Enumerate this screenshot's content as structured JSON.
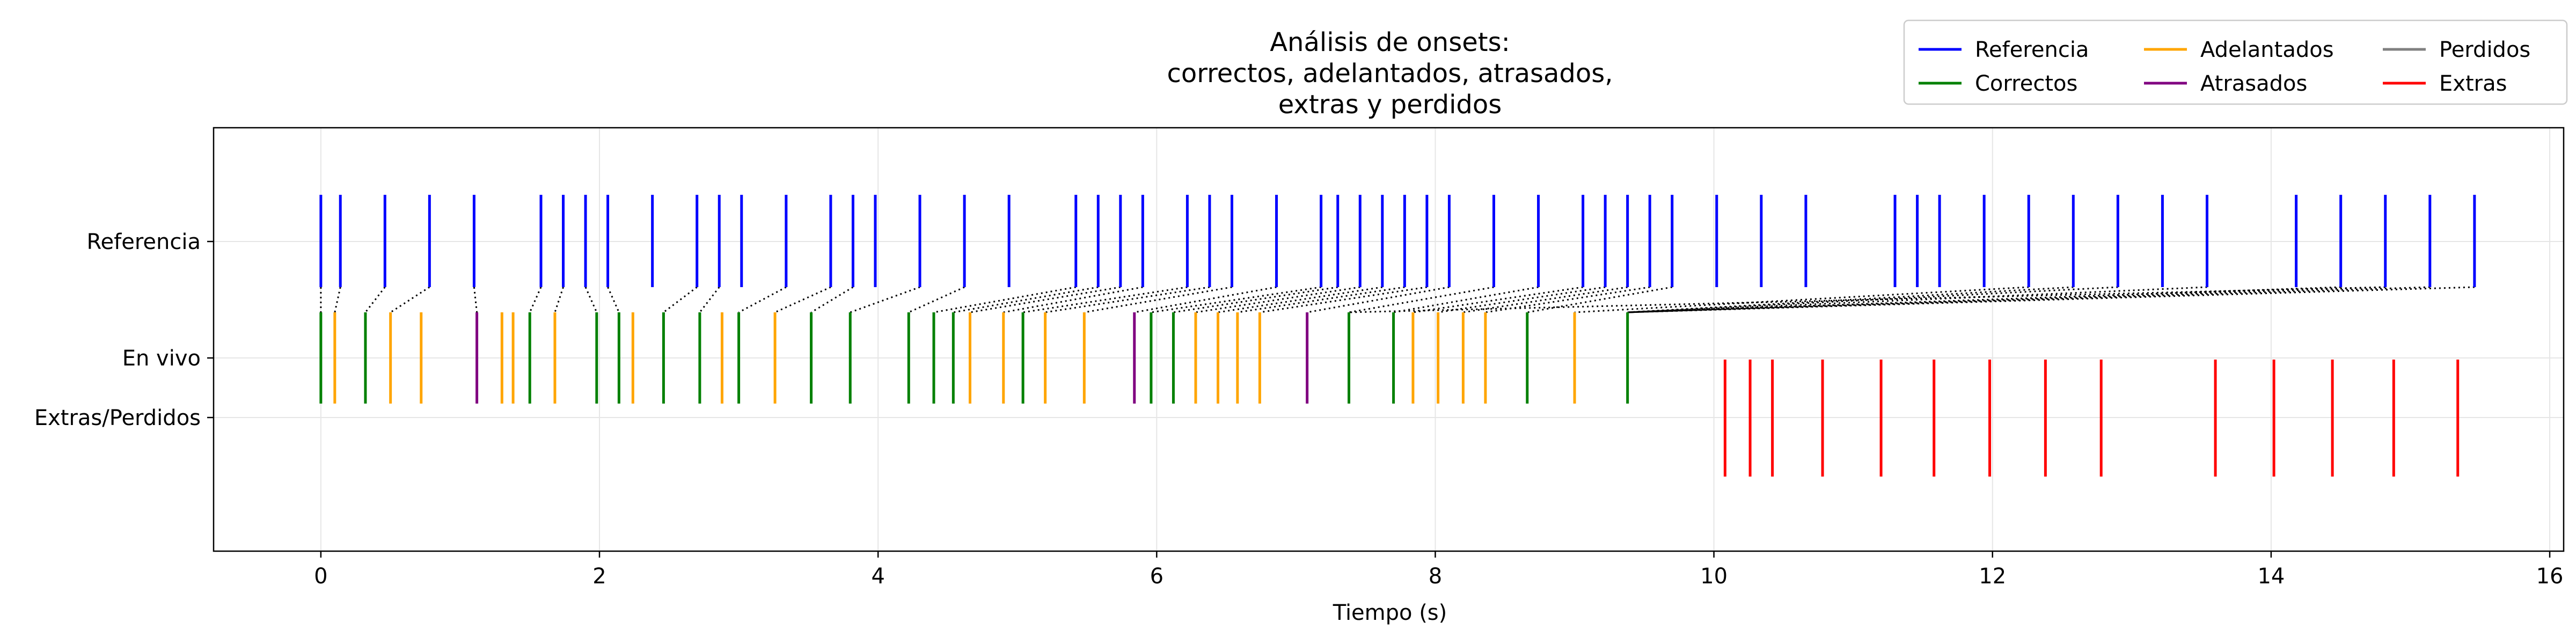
{
  "chart_data": {
    "type": "eventplot",
    "title_lines": [
      "Análisis de onsets:",
      "correctos, adelantados, atrasados,",
      "extras y perdidos"
    ],
    "xlabel": "Tiempo (s)",
    "ylabel": "",
    "xlim": [
      -0.77,
      16.1
    ],
    "xticks": [
      0,
      2,
      4,
      6,
      8,
      10,
      12,
      14,
      16
    ],
    "rows": [
      "Referencia",
      "En vivo",
      "Extras/Perdidos"
    ],
    "grid": true,
    "legend": {
      "placement": "top-right",
      "columns": 3,
      "entries": [
        {
          "label": "Referencia",
          "color": "#0000ff"
        },
        {
          "label": "Correctos",
          "color": "#008000"
        },
        {
          "label": "Adelantados",
          "color": "#ffa500"
        },
        {
          "label": "Atrasados",
          "color": "#800080"
        },
        {
          "label": "Perdidos",
          "color": "#808080"
        },
        {
          "label": "Extras",
          "color": "#ff0000"
        }
      ]
    },
    "series": [
      {
        "name": "Referencia",
        "row": "Referencia",
        "color": "#0000ff",
        "x": [
          0.0,
          0.14,
          0.46,
          0.78,
          1.1,
          1.58,
          1.74,
          1.9,
          2.06,
          2.38,
          2.7,
          2.86,
          3.02,
          3.34,
          3.66,
          3.82,
          3.98,
          4.3,
          4.62,
          4.94,
          5.42,
          5.58,
          5.74,
          5.9,
          6.22,
          6.38,
          6.54,
          6.86,
          7.18,
          7.3,
          7.46,
          7.62,
          7.78,
          7.94,
          8.1,
          8.42,
          8.74,
          9.06,
          9.22,
          9.38,
          9.54,
          9.7,
          10.02,
          10.34,
          10.66,
          11.3,
          11.46,
          11.62,
          11.94,
          12.26,
          12.58,
          12.9,
          13.22,
          13.54,
          14.18,
          14.5,
          14.82,
          15.14,
          15.46
        ]
      },
      {
        "name": "Correctos",
        "row": "En vivo",
        "color": "#008000",
        "x": [
          0.0,
          0.32,
          1.5,
          1.98,
          2.14,
          2.46,
          2.72,
          3.0,
          3.52,
          3.8,
          4.22,
          4.4,
          4.54,
          5.04,
          5.96,
          6.12,
          7.38,
          7.7,
          8.66,
          9.38
        ]
      },
      {
        "name": "Adelantados",
        "row": "En vivo",
        "color": "#ffa500",
        "x": [
          0.1,
          0.5,
          0.72,
          1.3,
          1.38,
          1.68,
          2.24,
          2.88,
          3.26,
          4.66,
          4.9,
          5.2,
          5.48,
          6.28,
          6.44,
          6.58,
          6.74,
          7.84,
          8.02,
          8.2,
          8.36,
          9.0
        ]
      },
      {
        "name": "Atrasados",
        "row": "En vivo",
        "color": "#800080",
        "x": [
          1.12,
          5.84,
          7.08
        ]
      },
      {
        "name": "Extras",
        "row": "Extras/Perdidos",
        "color": "#ff0000",
        "x": [
          10.08,
          10.26,
          10.42,
          10.78,
          11.2,
          11.58,
          11.98,
          12.38,
          12.78,
          13.6,
          14.02,
          14.44,
          14.88,
          15.34
        ]
      },
      {
        "name": "Perdidos",
        "row": "Extras/Perdidos",
        "color": "#808080",
        "x": []
      }
    ],
    "matches": [
      [
        0.0,
        0.0
      ],
      [
        0.14,
        0.1
      ],
      [
        0.46,
        0.32
      ],
      [
        0.78,
        0.5
      ],
      [
        1.1,
        1.12
      ],
      [
        1.58,
        1.5
      ],
      [
        1.74,
        1.68
      ],
      [
        1.9,
        1.98
      ],
      [
        2.06,
        2.14
      ],
      [
        2.7,
        2.46
      ],
      [
        2.86,
        2.72
      ],
      [
        3.34,
        3.0
      ],
      [
        3.66,
        3.26
      ],
      [
        3.82,
        3.52
      ],
      [
        4.3,
        3.8
      ],
      [
        4.62,
        4.22
      ],
      [
        5.42,
        4.4
      ],
      [
        5.58,
        4.54
      ],
      [
        5.74,
        4.66
      ],
      [
        5.9,
        4.9
      ],
      [
        6.22,
        5.04
      ],
      [
        6.38,
        5.2
      ],
      [
        6.54,
        5.48
      ],
      [
        6.86,
        5.84
      ],
      [
        7.18,
        5.96
      ],
      [
        7.3,
        6.12
      ],
      [
        7.46,
        6.28
      ],
      [
        7.62,
        6.44
      ],
      [
        7.78,
        6.58
      ],
      [
        7.94,
        6.74
      ],
      [
        8.1,
        7.08
      ],
      [
        8.42,
        7.38
      ],
      [
        8.74,
        7.7
      ],
      [
        9.06,
        7.84
      ],
      [
        9.22,
        8.02
      ],
      [
        9.38,
        8.2
      ],
      [
        9.54,
        8.36
      ],
      [
        9.7,
        8.66
      ],
      [
        12.26,
        9.0
      ],
      [
        12.58,
        9.38
      ],
      [
        12.9,
        9.38
      ],
      [
        13.54,
        9.38
      ],
      [
        14.5,
        9.38
      ],
      [
        14.82,
        9.38
      ],
      [
        15.46,
        9.38
      ],
      [
        14.82,
        7.38
      ],
      [
        15.14,
        9.38
      ]
    ]
  }
}
